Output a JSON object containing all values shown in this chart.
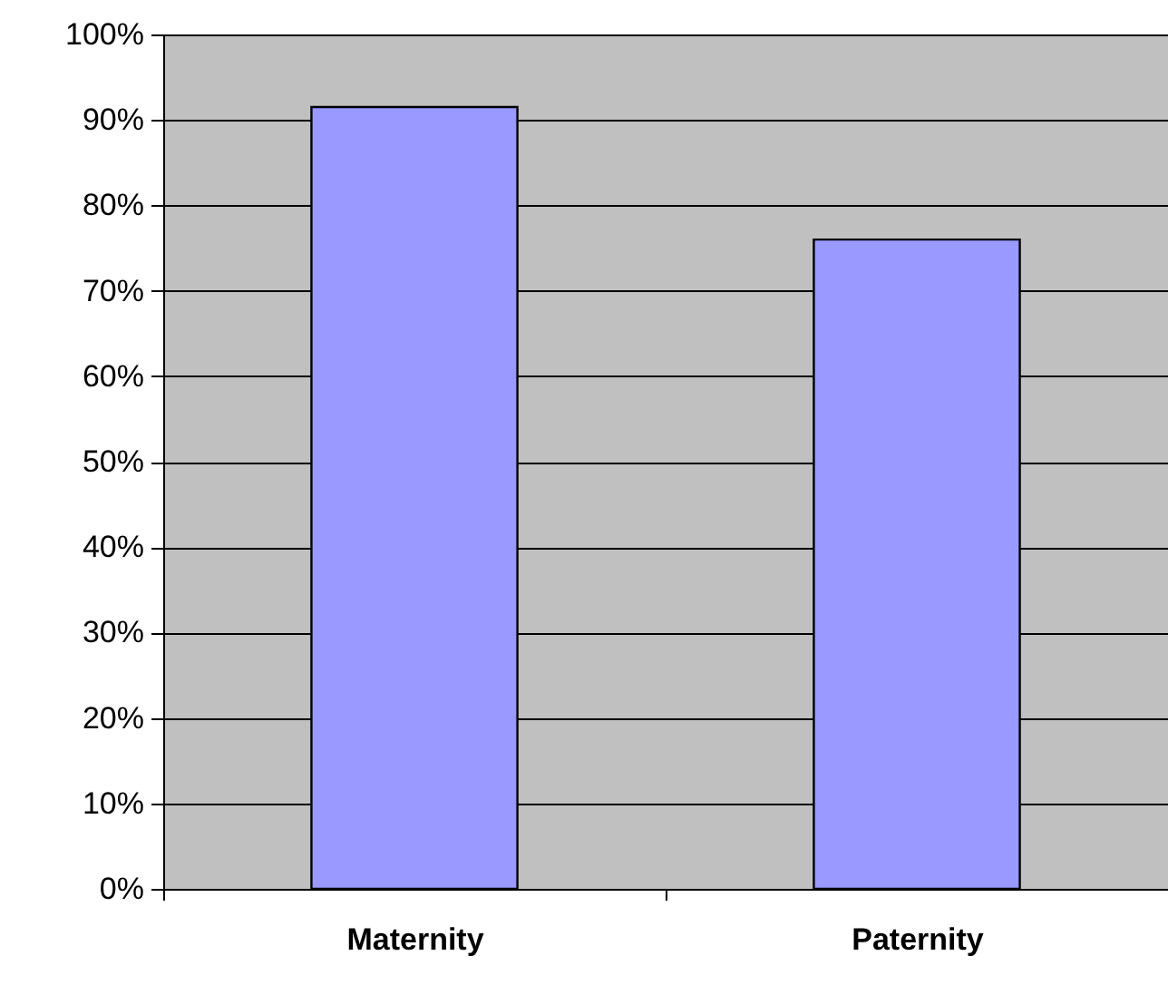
{
  "chart_data": {
    "type": "bar",
    "categories": [
      "Maternity",
      "Paternity"
    ],
    "values": [
      91.5,
      76
    ],
    "color": "#9999ff",
    "ylim": [
      0,
      100
    ],
    "yticks": [
      {
        "value": 0,
        "label": "0%"
      },
      {
        "value": 10,
        "label": "10%"
      },
      {
        "value": 20,
        "label": "20%"
      },
      {
        "value": 30,
        "label": "30%"
      },
      {
        "value": 40,
        "label": "40%"
      },
      {
        "value": 50,
        "label": "50%"
      },
      {
        "value": 60,
        "label": "60%"
      },
      {
        "value": 70,
        "label": "70%"
      },
      {
        "value": 80,
        "label": "80%"
      },
      {
        "value": 90,
        "label": "90%"
      },
      {
        "value": 100,
        "label": "100%"
      }
    ],
    "grid": "y"
  }
}
